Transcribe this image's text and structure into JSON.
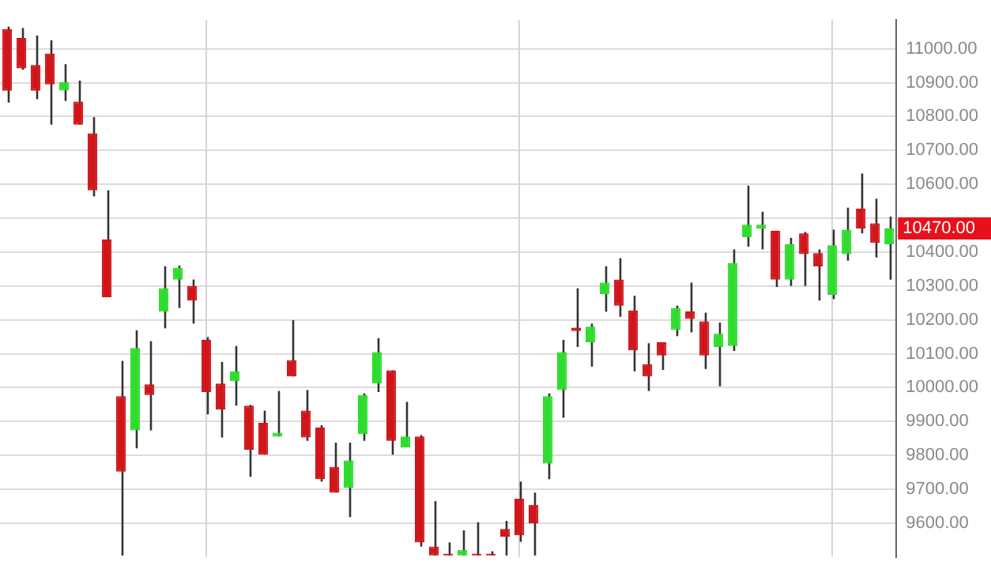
{
  "chart_data": {
    "type": "candlestick",
    "categories": [
      null,
      null,
      null,
      null,
      null,
      null,
      null,
      null,
      null,
      null,
      null,
      null,
      null,
      null,
      null,
      null,
      null,
      null,
      null,
      null,
      null,
      null,
      null,
      null,
      null,
      null,
      null,
      null,
      null,
      null,
      null,
      null,
      null,
      null,
      null,
      null,
      null,
      null,
      null,
      null,
      null,
      null,
      null,
      null,
      null,
      null,
      null,
      null,
      null,
      null,
      null,
      null,
      null,
      null,
      null,
      null,
      null,
      null,
      null,
      null,
      null,
      null,
      null
    ],
    "ohlc": [
      [
        11058,
        11065,
        10841,
        10876
      ],
      [
        11032,
        11061,
        10938,
        10942
      ],
      [
        10952,
        11039,
        10851,
        10876
      ],
      [
        10986,
        11025,
        10776,
        10895
      ],
      [
        10877,
        10954,
        10846,
        10902
      ],
      [
        10844,
        10906,
        10776,
        10776
      ],
      [
        10750,
        10798,
        10564,
        10582
      ],
      [
        10437,
        10582,
        10267,
        10267
      ],
      [
        9975,
        10079,
        9505,
        9752
      ],
      [
        9874,
        10169,
        9821,
        10117
      ],
      [
        10010,
        10137,
        9874,
        9978
      ],
      [
        10224,
        10358,
        10175,
        10293
      ],
      [
        10319,
        10360,
        10235,
        10354
      ],
      [
        10300,
        10319,
        10189,
        10257
      ],
      [
        10141,
        10149,
        9921,
        9987
      ],
      [
        10012,
        10076,
        9853,
        9935
      ],
      [
        10019,
        10123,
        9947,
        10048
      ],
      [
        9947,
        9949,
        9737,
        9817
      ],
      [
        9896,
        9932,
        9802,
        9802
      ],
      [
        9856,
        9990,
        9856,
        9867
      ],
      [
        10081,
        10199,
        10033,
        10033
      ],
      [
        9932,
        9993,
        9843,
        9853
      ],
      [
        9882,
        9889,
        9723,
        9730
      ],
      [
        9766,
        9838,
        9690,
        9690
      ],
      [
        9704,
        9838,
        9618,
        9785
      ],
      [
        9863,
        9983,
        9843,
        9978
      ],
      [
        10012,
        10146,
        9987,
        10105
      ],
      [
        10051,
        10051,
        9802,
        9843
      ],
      [
        9824,
        9958,
        9824,
        9856
      ],
      [
        9856,
        9860,
        9531,
        9543
      ],
      [
        9531,
        9665,
        9505,
        9505
      ],
      [
        9510,
        9543,
        9505,
        9505
      ],
      [
        9505,
        9579,
        9505,
        9521
      ],
      [
        9510,
        9603,
        9505,
        9505
      ],
      [
        9510,
        9517,
        9505,
        9505
      ],
      [
        9583,
        9607,
        9505,
        9560
      ],
      [
        9672,
        9723,
        9545,
        9564
      ],
      [
        9654,
        9690,
        9505,
        9600
      ],
      [
        9776,
        9983,
        9730,
        9975
      ],
      [
        9993,
        10141,
        9911,
        10105
      ],
      [
        10177,
        10293,
        10120,
        10167
      ],
      [
        10134,
        10189,
        10062,
        10180
      ],
      [
        10276,
        10358,
        10224,
        10310
      ],
      [
        10319,
        10382,
        10209,
        10242
      ],
      [
        10228,
        10271,
        10048,
        10110
      ],
      [
        10069,
        10131,
        9990,
        10033
      ],
      [
        10134,
        10134,
        10052,
        10095
      ],
      [
        10170,
        10242,
        10152,
        10235
      ],
      [
        10225,
        10310,
        10163,
        10203
      ],
      [
        10196,
        10221,
        10055,
        10095
      ],
      [
        10120,
        10192,
        10004,
        10159
      ],
      [
        10123,
        10408,
        10108,
        10368
      ],
      [
        10444,
        10596,
        10416,
        10481
      ],
      [
        10469,
        10519,
        10408,
        10481
      ],
      [
        10463,
        10463,
        10297,
        10319
      ],
      [
        10319,
        10442,
        10300,
        10423
      ],
      [
        10455,
        10459,
        10300,
        10394
      ],
      [
        10397,
        10408,
        10257,
        10358
      ],
      [
        10274,
        10466,
        10261,
        10420
      ],
      [
        10394,
        10531,
        10375,
        10466
      ],
      [
        10528,
        10632,
        10455,
        10470
      ],
      [
        10485,
        10557,
        10384,
        10427
      ],
      [
        10423,
        10505,
        10319,
        10470
      ]
    ],
    "colors": [
      "#d0161b",
      "#d0161b",
      "#d0161b",
      "#d0161b",
      "#2edc2e",
      "#d0161b",
      "#d0161b",
      "#d0161b",
      "#d0161b",
      "#2edc2e",
      "#d0161b",
      "#2edc2e",
      "#2edc2e",
      "#d0161b",
      "#d0161b",
      "#d0161b",
      "#2edc2e",
      "#d0161b",
      "#d0161b",
      "#2edc2e",
      "#d0161b",
      "#d0161b",
      "#d0161b",
      "#d0161b",
      "#2edc2e",
      "#2edc2e",
      "#2edc2e",
      "#d0161b",
      "#2edc2e",
      "#d0161b",
      "#d0161b",
      "#d0161b",
      "#2edc2e",
      "#d0161b",
      "#d0161b",
      "#d0161b",
      "#d0161b",
      "#d0161b",
      "#2edc2e",
      "#2edc2e",
      "#d0161b",
      "#2edc2e",
      "#2edc2e",
      "#d0161b",
      "#d0161b",
      "#d0161b",
      "#d0161b",
      "#2edc2e",
      "#d0161b",
      "#d0161b",
      "#2edc2e",
      "#2edc2e",
      "#2edc2e",
      "#2edc2e",
      "#d0161b",
      "#2edc2e",
      "#d0161b",
      "#d0161b",
      "#2edc2e",
      "#2edc2e",
      "#d0161b",
      "#d0161b",
      "#2edc2e"
    ],
    "ylim": [
      9500,
      11085
    ],
    "yticks": [
      {
        "value": 9600,
        "label": "9600.00"
      },
      {
        "value": 9700,
        "label": "9700.00"
      },
      {
        "value": 9800,
        "label": "9800.00"
      },
      {
        "value": 9900,
        "label": "9900.00"
      },
      {
        "value": 10000,
        "label": "10000.00"
      },
      {
        "value": 10100,
        "label": "10100.00"
      },
      {
        "value": 10200,
        "label": "10200.00"
      },
      {
        "value": 10300,
        "label": "10300.00"
      },
      {
        "value": 10400,
        "label": "10400.00"
      },
      {
        "value": 10500,
        "label": null
      },
      {
        "value": 10600,
        "label": "10600.00"
      },
      {
        "value": 10700,
        "label": "10700.00"
      },
      {
        "value": 10800,
        "label": "10800.00"
      },
      {
        "value": 10900,
        "label": "10900.00"
      },
      {
        "value": 11000,
        "label": "11000.00"
      }
    ],
    "annotations": [
      "10470.00"
    ],
    "grid": true,
    "legend": false,
    "tick_labels": "y"
  }
}
